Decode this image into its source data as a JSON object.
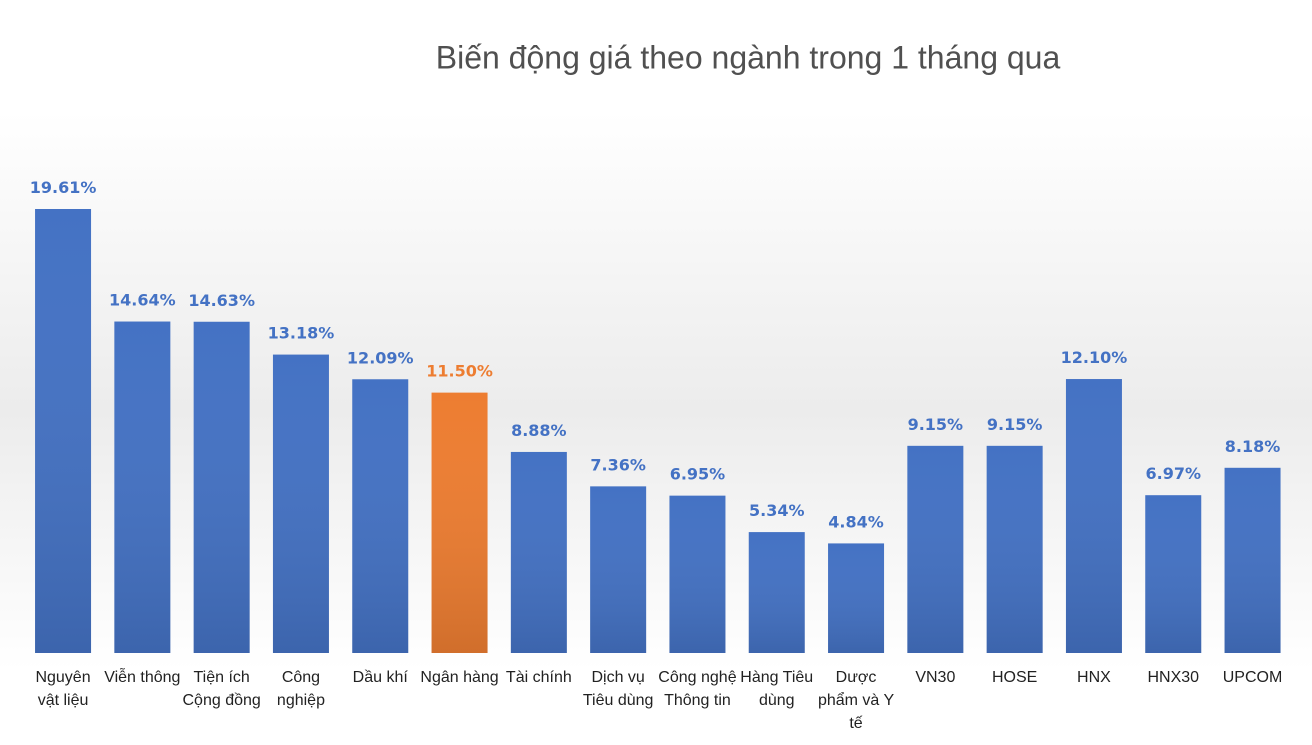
{
  "chart_data": {
    "type": "bar",
    "title": "Biến động giá theo ngành trong 1 tháng qua",
    "categories": [
      "Nguyên vật liệu",
      "Viễn thông",
      "Tiện ích Cộng đồng",
      "Công nghiệp",
      "Dầu khí",
      "Ngân hàng",
      "Tài chính",
      "Dịch vụ Tiêu dùng",
      "Công nghệ Thông tin",
      "Hàng Tiêu dùng",
      "Dược phẩm và Y tế",
      "VN30",
      "HOSE",
      "HNX",
      "HNX30",
      "UPCOM"
    ],
    "values": [
      19.61,
      14.64,
      14.63,
      13.18,
      12.09,
      11.5,
      8.88,
      7.36,
      6.95,
      5.34,
      4.84,
      9.15,
      9.15,
      12.1,
      6.97,
      8.18
    ],
    "value_labels": [
      "19.61%",
      "14.64%",
      "14.63%",
      "13.18%",
      "12.09%",
      "11.50%",
      "8.88%",
      "7.36%",
      "6.95%",
      "5.34%",
      "4.84%",
      "9.15%",
      "9.15%",
      "12.10%",
      "6.97%",
      "8.18%"
    ],
    "colors": [
      "#4472c4",
      "#4472c4",
      "#4472c4",
      "#4472c4",
      "#4472c4",
      "#ed7d31",
      "#4472c4",
      "#4472c4",
      "#4472c4",
      "#4472c4",
      "#4472c4",
      "#4472c4",
      "#4472c4",
      "#4472c4",
      "#4472c4",
      "#4472c4"
    ]
  }
}
